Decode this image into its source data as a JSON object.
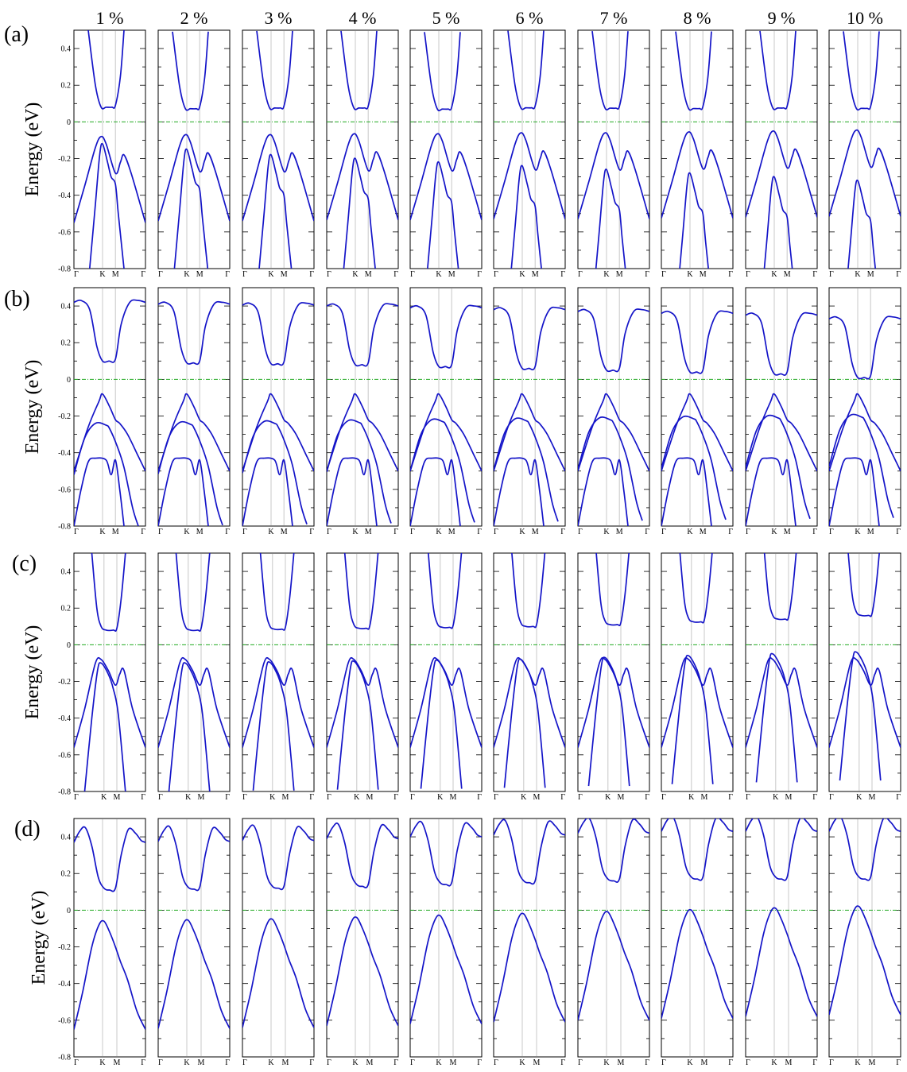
{
  "chart_data": {
    "type": "line",
    "column_labels": [
      "1 %",
      "2 %",
      "3 %",
      "4 %",
      "5 %",
      "6 %",
      "7 %",
      "8 %",
      "9 %",
      "10 %"
    ],
    "xtick_labels": [
      "Γ",
      "K",
      "M",
      "Γ"
    ],
    "ylabel": "Energy (eV)",
    "ylim": [
      -0.8,
      0.5
    ],
    "yticks": [
      -0.8,
      -0.6,
      -0.4,
      -0.2,
      0,
      0.2,
      0.4
    ],
    "ytick_labels": [
      "-0.8",
      "-0.6",
      "-0.4",
      "-0.2",
      "0",
      "0.2",
      "0.4"
    ],
    "fermi_level": 0,
    "grid": false,
    "colors": {
      "bands": "#1414c8",
      "fermi": "#22aa22",
      "k_lines": "#c8c8c8"
    },
    "rows": [
      {
        "label": "(a)",
        "k_path": {
          "K": 0.4,
          "M": 0.58
        },
        "series": [
          {
            "points": [
              [
                0.2,
                0.5
              ],
              [
                0.3,
                0.2
              ],
              [
                0.38,
                0.08
              ],
              [
                0.45,
                0.08
              ],
              [
                0.53,
                0.08
              ],
              [
                0.58,
                0.09
              ],
              [
                0.65,
                0.25
              ],
              [
                0.7,
                0.5
              ]
            ],
            "shift": [
              0,
              -0.008,
              -0.004,
              -0.004,
              -0.01,
              -0.003,
              -0.005,
              -0.007,
              -0.004,
              -0.006
            ]
          },
          {
            "points": [
              [
                0,
                -0.55
              ],
              [
                0.15,
                -0.35
              ],
              [
                0.3,
                -0.14
              ],
              [
                0.38,
                -0.08
              ],
              [
                0.45,
                -0.12
              ],
              [
                0.58,
                -0.28
              ],
              [
                0.65,
                -0.22
              ],
              [
                0.7,
                -0.18
              ],
              [
                0.8,
                -0.28
              ],
              [
                1,
                -0.55
              ]
            ],
            "shift": [
              0,
              0.01,
              0.01,
              0.015,
              0.015,
              0.02,
              0.02,
              0.025,
              0.03,
              0.035
            ]
          },
          {
            "points": [
              [
                0.22,
                -0.8
              ],
              [
                0.3,
                -0.45
              ],
              [
                0.36,
                -0.18
              ],
              [
                0.4,
                -0.12
              ],
              [
                0.47,
                -0.22
              ],
              [
                0.52,
                -0.3
              ],
              [
                0.58,
                -0.34
              ],
              [
                0.62,
                -0.5
              ],
              [
                0.7,
                -0.8
              ]
            ],
            "shift": [
              0,
              -0.03,
              -0.06,
              -0.08,
              -0.1,
              -0.12,
              -0.14,
              -0.16,
              -0.18,
              -0.2
            ]
          }
        ]
      },
      {
        "label": "(b)",
        "k_path": {
          "K": 0.4,
          "M": 0.58
        },
        "series": [
          {
            "points": [
              [
                0,
                0.42
              ],
              [
                0.1,
                0.43
              ],
              [
                0.22,
                0.38
              ],
              [
                0.32,
                0.18
              ],
              [
                0.4,
                0.1
              ],
              [
                0.49,
                0.1
              ],
              [
                0.58,
                0.11
              ],
              [
                0.66,
                0.3
              ],
              [
                0.78,
                0.42
              ],
              [
                0.9,
                0.43
              ],
              [
                1,
                0.42
              ]
            ],
            "shift": [
              0,
              -0.01,
              -0.015,
              -0.02,
              -0.03,
              -0.04,
              -0.05,
              -0.06,
              -0.07,
              -0.09
            ]
          },
          {
            "points": [
              [
                0,
                -0.5
              ],
              [
                0.2,
                -0.26
              ],
              [
                0.35,
                -0.12
              ],
              [
                0.4,
                -0.08
              ],
              [
                0.5,
                -0.15
              ],
              [
                0.58,
                -0.22
              ],
              [
                0.64,
                -0.24
              ],
              [
                0.75,
                -0.3
              ],
              [
                0.9,
                -0.42
              ],
              [
                1,
                -0.5
              ]
            ],
            "shift": [
              0,
              0,
              0,
              0,
              0,
              0,
              0,
              0,
              0,
              0
            ]
          },
          {
            "points": [
              [
                0,
                -0.52
              ],
              [
                0.15,
                -0.32
              ],
              [
                0.3,
                -0.24
              ],
              [
                0.45,
                -0.25
              ],
              [
                0.5,
                -0.27
              ],
              [
                0.6,
                -0.36
              ],
              [
                0.7,
                -0.48
              ],
              [
                0.82,
                -0.7
              ],
              [
                0.9,
                -0.8
              ]
            ],
            "shift": [
              0,
              0.005,
              0.01,
              0.015,
              0.02,
              0.025,
              0.03,
              0.035,
              0.04,
              0.045
            ]
          },
          {
            "points": [
              [
                0,
                -0.8
              ],
              [
                0.1,
                -0.6
              ],
              [
                0.2,
                -0.45
              ],
              [
                0.3,
                -0.43
              ],
              [
                0.45,
                -0.44
              ],
              [
                0.52,
                -0.52
              ],
              [
                0.58,
                -0.44
              ],
              [
                0.64,
                -0.6
              ],
              [
                0.7,
                -0.8
              ]
            ],
            "shift": [
              0,
              0,
              0,
              0,
              0,
              0,
              0,
              0,
              0,
              0
            ]
          }
        ]
      },
      {
        "label": "(c)",
        "k_path": {
          "K": 0.42,
          "M": 0.6
        },
        "series": [
          {
            "points": [
              [
                0.25,
                0.5
              ],
              [
                0.32,
                0.2
              ],
              [
                0.38,
                0.1
              ],
              [
                0.45,
                0.08
              ],
              [
                0.55,
                0.08
              ],
              [
                0.6,
                0.09
              ],
              [
                0.66,
                0.25
              ],
              [
                0.72,
                0.5
              ]
            ],
            "shift": [
              0,
              0,
              0.005,
              0.01,
              0.015,
              0.02,
              0.03,
              0.045,
              0.06,
              0.08
            ]
          },
          {
            "points": [
              [
                0,
                -0.56
              ],
              [
                0.15,
                -0.35
              ],
              [
                0.3,
                -0.1
              ],
              [
                0.38,
                -0.08
              ],
              [
                0.48,
                -0.14
              ],
              [
                0.58,
                -0.22
              ],
              [
                0.64,
                -0.16
              ],
              [
                0.7,
                -0.14
              ],
              [
                0.82,
                -0.35
              ],
              [
                1,
                -0.56
              ]
            ],
            "shift": [
              0,
              0,
              0,
              0,
              0,
              0,
              0,
              0,
              0,
              0
            ]
          },
          {
            "points": [
              [
                0.15,
                -0.8
              ],
              [
                0.25,
                -0.4
              ],
              [
                0.33,
                -0.14
              ],
              [
                0.38,
                -0.1
              ],
              [
                0.48,
                -0.16
              ],
              [
                0.55,
                -0.24
              ],
              [
                0.62,
                -0.38
              ],
              [
                0.72,
                -0.8
              ]
            ],
            "shift": [
              0,
              0,
              0.005,
              0.01,
              0.015,
              0.02,
              0.03,
              0.04,
              0.05,
              0.06
            ]
          }
        ]
      },
      {
        "label": "(d)",
        "k_path": {
          "K": 0.4,
          "M": 0.6
        },
        "series": [
          {
            "points": [
              [
                0,
                0.37
              ],
              [
                0.08,
                0.43
              ],
              [
                0.16,
                0.45
              ],
              [
                0.25,
                0.35
              ],
              [
                0.34,
                0.18
              ],
              [
                0.42,
                0.12
              ],
              [
                0.5,
                0.11
              ],
              [
                0.58,
                0.12
              ],
              [
                0.66,
                0.3
              ],
              [
                0.76,
                0.44
              ],
              [
                0.86,
                0.42
              ],
              [
                0.94,
                0.38
              ],
              [
                1,
                0.37
              ]
            ],
            "shift": [
              0,
              0.005,
              0.01,
              0.02,
              0.03,
              0.04,
              0.05,
              0.06,
              0.06,
              0.06
            ]
          },
          {
            "points": [
              [
                0,
                -0.65
              ],
              [
                0.12,
                -0.45
              ],
              [
                0.25,
                -0.2
              ],
              [
                0.35,
                -0.08
              ],
              [
                0.42,
                -0.06
              ],
              [
                0.5,
                -0.12
              ],
              [
                0.58,
                -0.2
              ],
              [
                0.65,
                -0.28
              ],
              [
                0.75,
                -0.38
              ],
              [
                0.88,
                -0.55
              ],
              [
                1,
                -0.65
              ]
            ],
            "shift": [
              0,
              0.005,
              0.01,
              0.02,
              0.03,
              0.04,
              0.05,
              0.06,
              0.07,
              0.08
            ]
          }
        ]
      }
    ]
  }
}
